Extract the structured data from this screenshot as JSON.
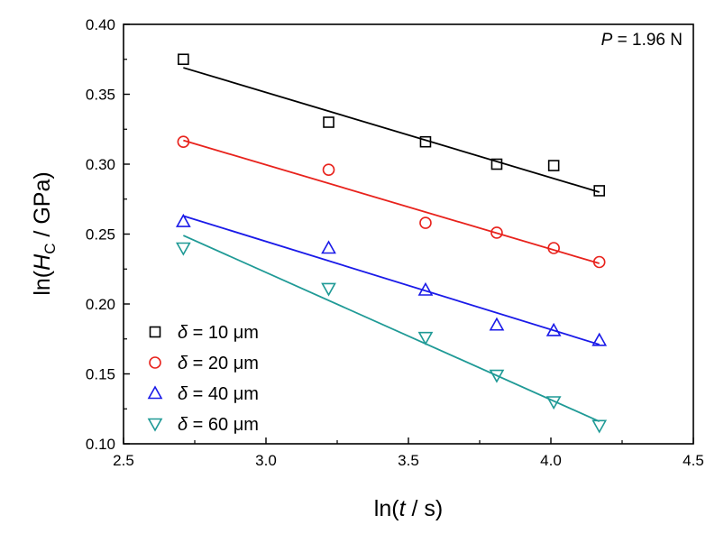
{
  "chart_data": {
    "type": "scatter",
    "xlabel": "ln(t / s)",
    "ylabel": "ln(H_C / GPa)",
    "xlim": [
      2.5,
      4.5
    ],
    "ylim": [
      0.1,
      0.4
    ],
    "xticks": [
      "2.5",
      "3.0",
      "3.5",
      "4.0",
      "4.5"
    ],
    "yticks": [
      "0.10",
      "0.15",
      "0.20",
      "0.25",
      "0.30",
      "0.35",
      "0.40"
    ],
    "grid": false,
    "legend_position": "bottom-left",
    "annotation": {
      "italic": "P",
      "rest": " = 1.96 N"
    },
    "x": [
      2.71,
      3.22,
      3.56,
      3.81,
      4.01,
      4.17
    ],
    "series": [
      {
        "name": "δ = 10 μm",
        "sym": "δ",
        "rest": " = 10 μm",
        "color": "#000000",
        "marker": "square",
        "values": [
          0.375,
          0.33,
          0.316,
          0.3,
          0.299,
          0.281
        ],
        "fit": [
          0.369,
          0.28
        ]
      },
      {
        "name": "δ = 20 μm",
        "sym": "δ",
        "rest": " = 20 μm",
        "color": "#e8221c",
        "marker": "circle",
        "values": [
          0.316,
          0.296,
          0.258,
          0.251,
          0.24,
          0.23
        ],
        "fit": [
          0.317,
          0.229
        ]
      },
      {
        "name": "δ = 40 μm",
        "sym": "δ",
        "rest": " = 40 μm",
        "color": "#1a1ae8",
        "marker": "triangle-up",
        "values": [
          0.259,
          0.24,
          0.21,
          0.185,
          0.181,
          0.174
        ],
        "fit": [
          0.263,
          0.171
        ]
      },
      {
        "name": "δ = 60 μm",
        "sym": "δ",
        "rest": " = 60 μm",
        "color": "#1f9a96",
        "marker": "triangle-down",
        "values": [
          0.24,
          0.211,
          0.176,
          0.149,
          0.13,
          0.113
        ],
        "fit": [
          0.249,
          0.116
        ]
      }
    ]
  }
}
